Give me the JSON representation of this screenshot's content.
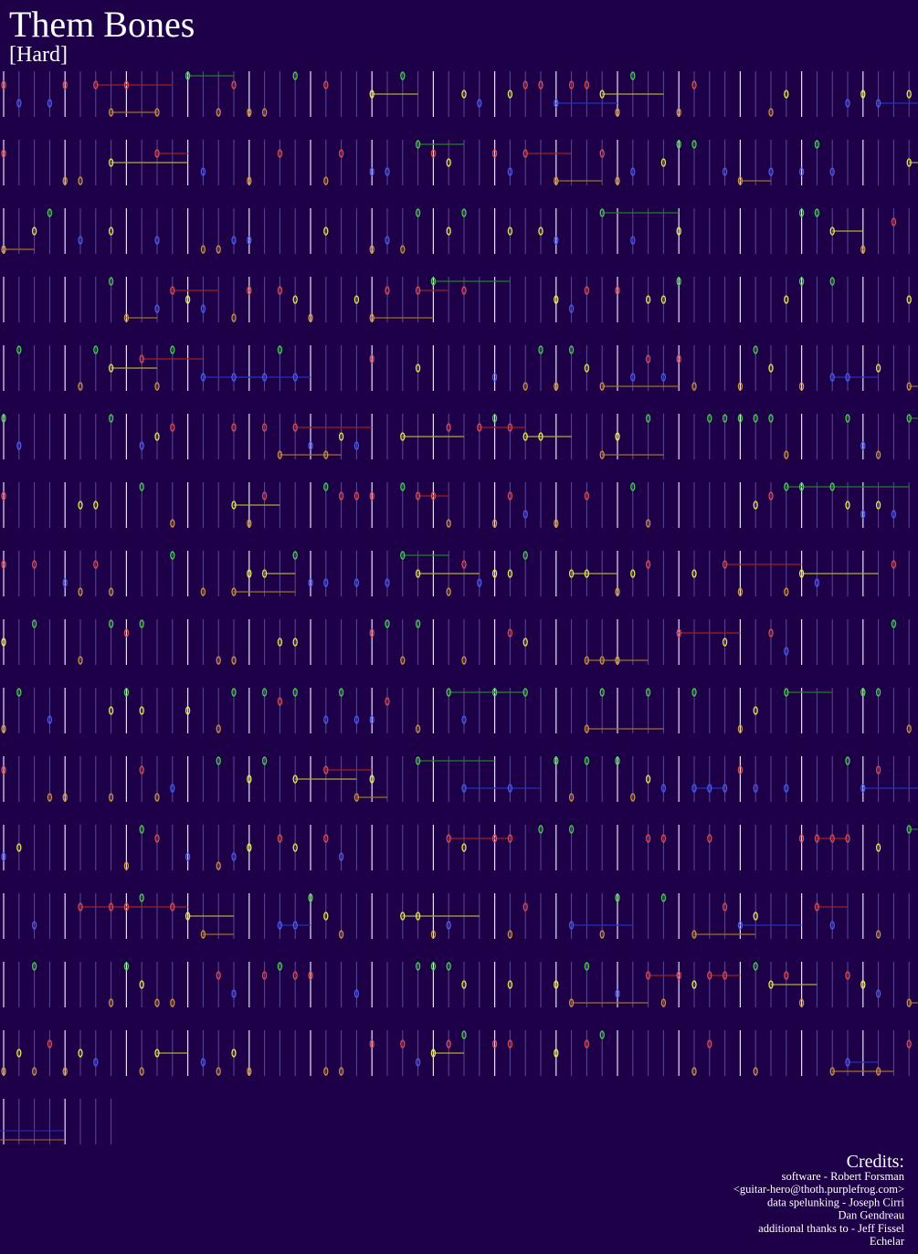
{
  "header": {
    "title": "Them Bones",
    "difficulty": "[Hard]"
  },
  "credits": {
    "heading": "Credits:",
    "lines": [
      "software - Robert Forsman",
      "<guitar-hero@thoth.purplefrog.com>",
      "data spelunking - Joseph Cirri",
      "Dan Gendreau",
      "additional thanks to - Jeff Fissel",
      "Echelar"
    ]
  }
}
